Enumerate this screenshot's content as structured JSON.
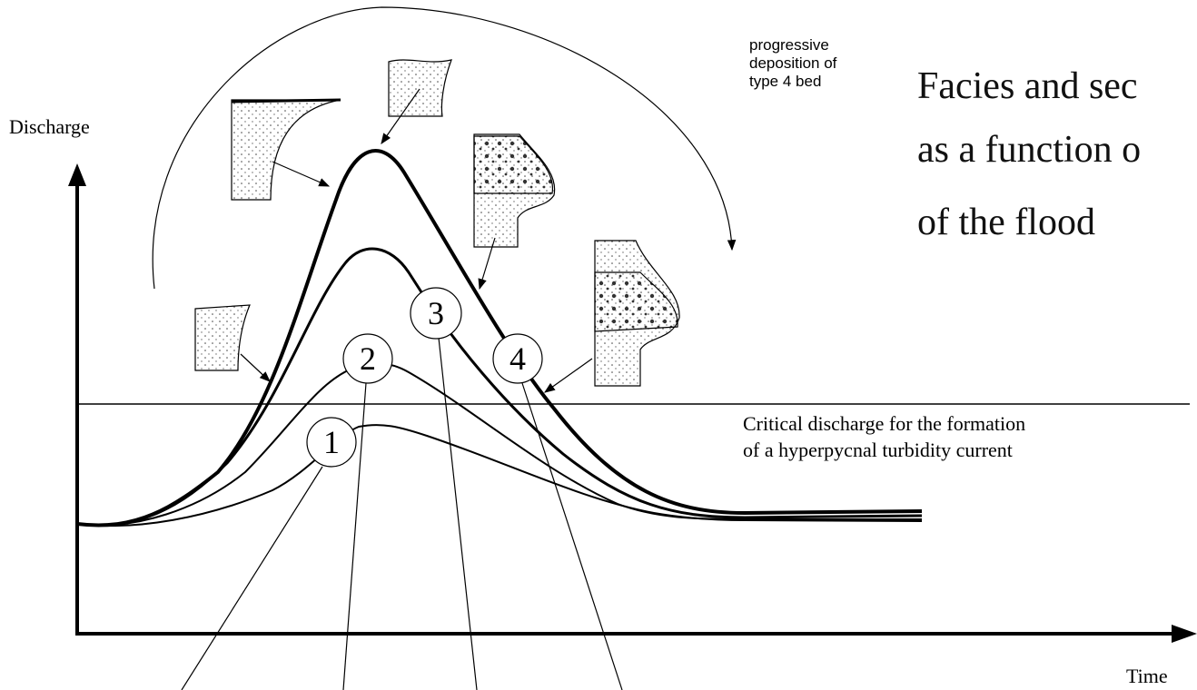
{
  "axes": {
    "y_label": "Discharge",
    "x_label": "Time"
  },
  "annotation": {
    "lines": [
      "progressive",
      "deposition of",
      "type 4 bed"
    ]
  },
  "critical_line": {
    "lines": [
      "Critical discharge for the formation",
      "of a hyperpycnal turbidity current"
    ]
  },
  "markers": [
    {
      "label": "1"
    },
    {
      "label": "2"
    },
    {
      "label": "3"
    },
    {
      "label": "4"
    }
  ],
  "caption": {
    "lines": [
      "Facies and sec",
      "as a function o",
      "of the flood"
    ]
  }
}
